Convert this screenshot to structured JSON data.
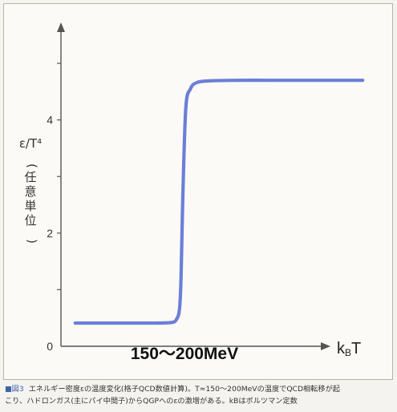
{
  "caption": {
    "label": "■図3",
    "line1": "エネルギー密度εの温度変化(格子QCD数値計算)。T≈150〜200MeVの温度でQCD相転移が起",
    "line2": "こり、ハドロンガス(主にパイ中間子)からQGPへのεの激増がある。kBはボルツマン定数"
  },
  "chart_data": {
    "type": "line",
    "title": "",
    "xlabel": "kBT",
    "ylabel_symbol": "ε/T⁴",
    "ylabel_paren": "(任意単位)",
    "ylim": [
      0,
      6
    ],
    "yticks": [
      0,
      2,
      4
    ],
    "yticks_unlabeled": [
      1,
      3,
      5
    ],
    "ytick_labels": [
      "0",
      "2",
      "4"
    ],
    "xlim": [
      0,
      100
    ],
    "grid": false,
    "annotation": "150〜200MeV",
    "series": [
      {
        "color": "#6b7fd7",
        "x": [
          4.5,
          10,
          20,
          30,
          35,
          36.5,
          37.5,
          38,
          38.5,
          39.5,
          41,
          43,
          47,
          55,
          65,
          75,
          85,
          95.5
        ],
        "y": [
          0.41,
          0.41,
          0.41,
          0.41,
          0.42,
          0.47,
          0.65,
          1.2,
          2.5,
          4.2,
          4.55,
          4.66,
          4.69,
          4.7,
          4.7,
          4.7,
          4.7,
          4.7
        ]
      }
    ],
    "colors": {
      "axis": "#555555",
      "line": "#6b7fd7"
    }
  }
}
